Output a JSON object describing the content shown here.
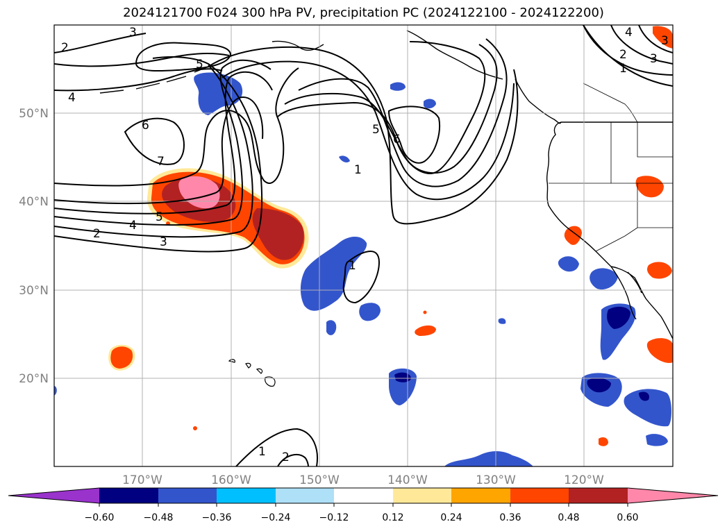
{
  "title": "2024121700 F024 300 hPa PV, precipitation PC (2024122100 - 2024122200)",
  "latitude_labels": [
    "50°N",
    "40°N",
    "30°N",
    "20°N"
  ],
  "longitude_labels": [
    "170°W",
    "160°W",
    "150°W",
    "140°W",
    "130°W",
    "120°W"
  ],
  "contour_labels": [
    "2",
    "3",
    "4",
    "4",
    "5",
    "5",
    "6",
    "7",
    "2",
    "3",
    "5",
    "6",
    "1",
    "1",
    "2",
    "1",
    "4",
    "3",
    "2",
    "1",
    "3"
  ],
  "colorbar": {
    "tick_labels": [
      "−0.60",
      "−0.48",
      "−0.36",
      "−0.24",
      "−0.12",
      "0.12",
      "0.24",
      "0.36",
      "0.48",
      "0.60"
    ],
    "colors": [
      "#9933cc",
      "#000080",
      "#3355cc",
      "#00bfff",
      "#aee0f8",
      "#ffffff",
      "#ffe999",
      "#ffa500",
      "#ff4500",
      "#b22222",
      "#ff88aa"
    ]
  },
  "colors": {
    "positive_strong": "#ff88aa",
    "positive": "#b22222",
    "positive_mid": "#ff4500",
    "negative": "#3355cc",
    "negative_strong": "#000080",
    "contour": "#000000",
    "grid": "#b0b0b0"
  }
}
